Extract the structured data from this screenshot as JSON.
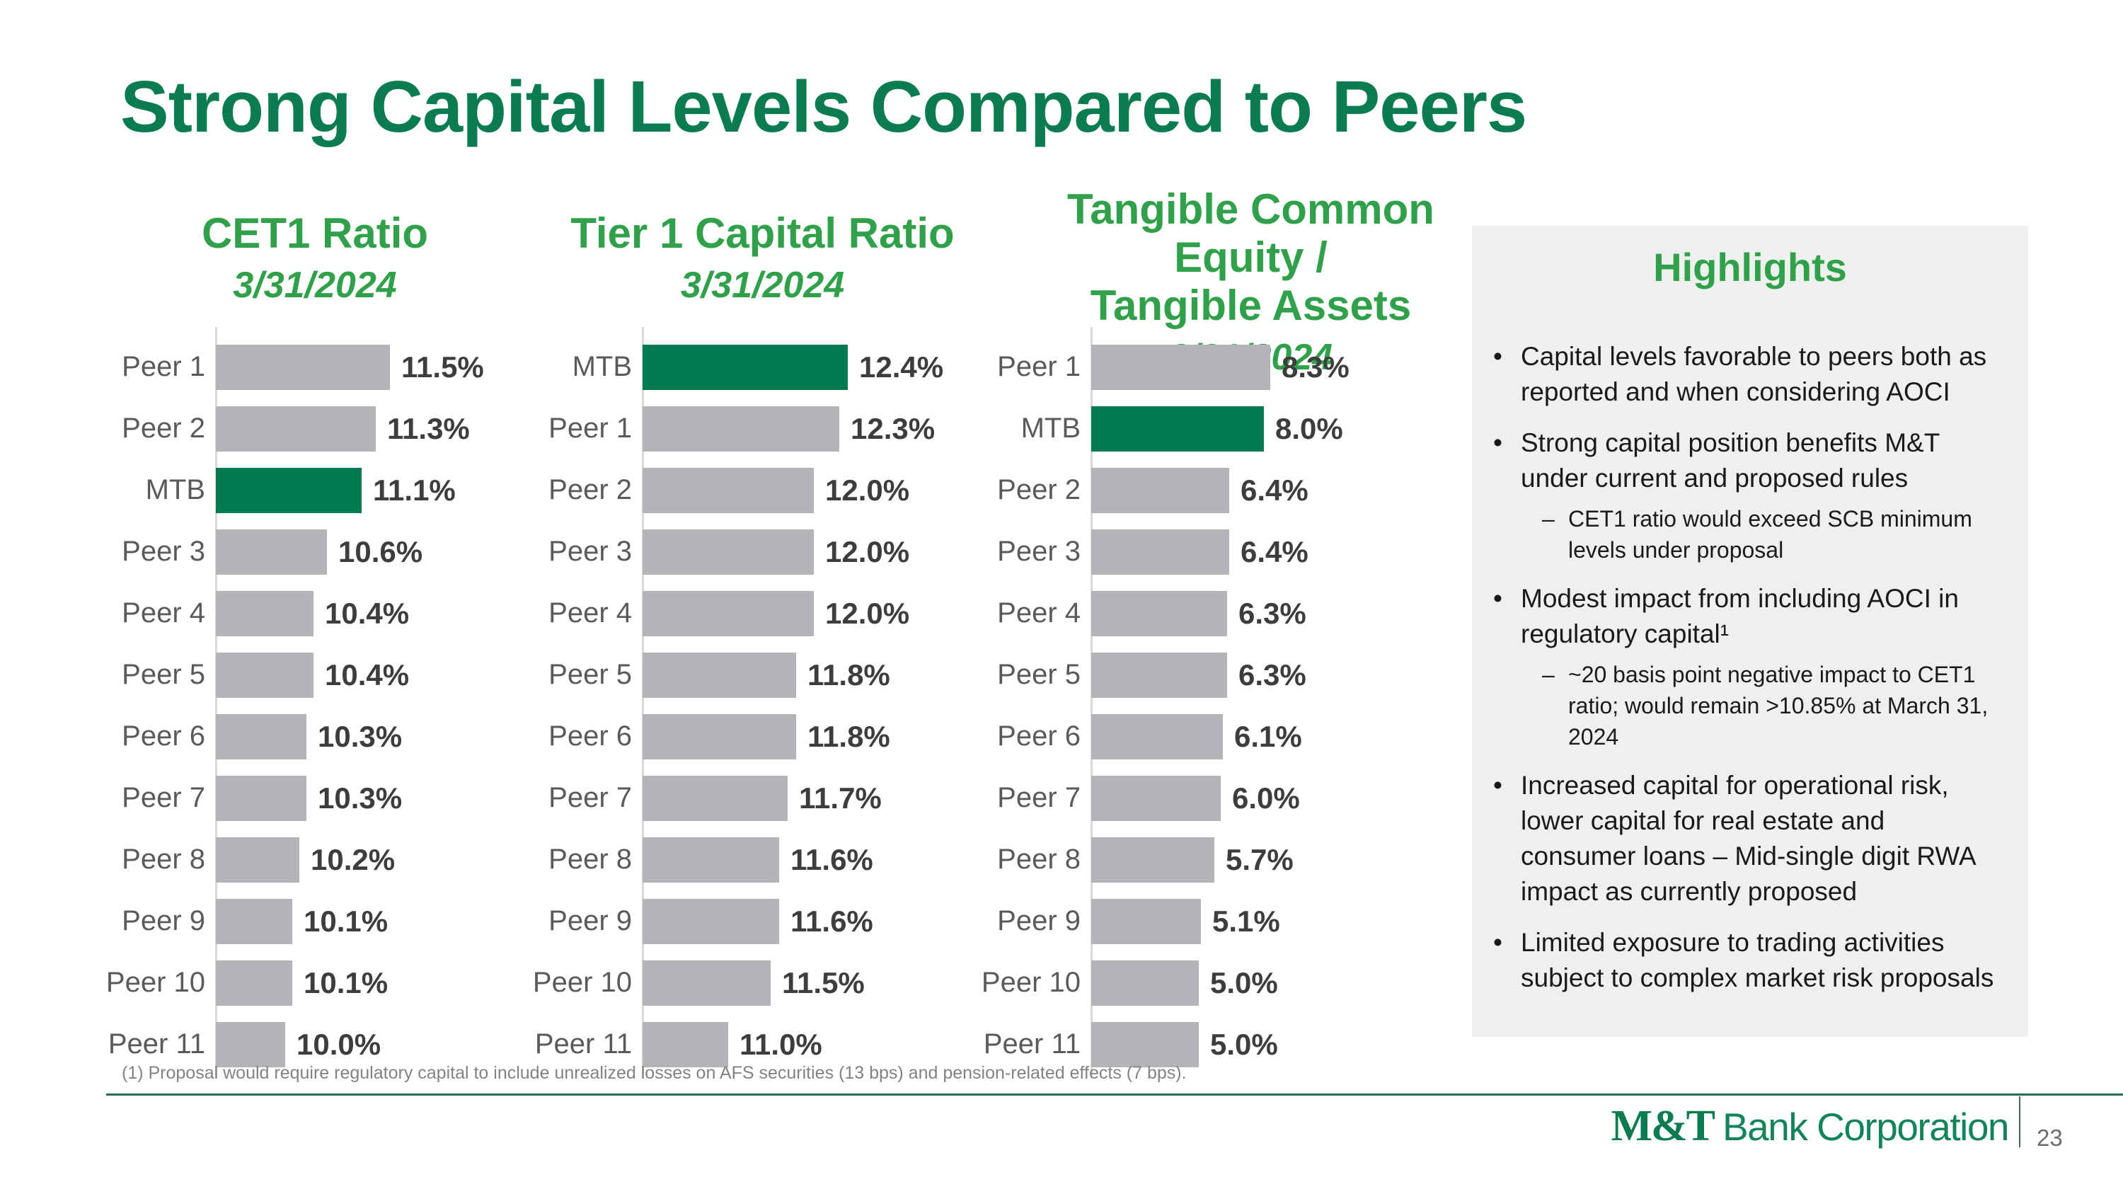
{
  "slide": {
    "title": "Strong Capital Levels Compared to Peers",
    "footnote": "(1) Proposal would require regulatory capital to include unrealized losses on AFS securities (13 bps) and pension-related effects (7 bps).",
    "page_number": "23",
    "logo": {
      "mt": "M&T",
      "name": "Bank Corporation"
    }
  },
  "colors": {
    "title_green": "#0b7c4f",
    "heading_green": "#31a04a",
    "bar_green": "#007a53",
    "bar_gray": "#b3b3b8",
    "label_gray": "#5a5a5a",
    "value_dark": "#3d3d3d",
    "panel_bg": "#eef0ee",
    "rule_green": "#266c57",
    "footnote_gray": "#828282"
  },
  "chart_data": [
    {
      "type": "bar",
      "orientation": "horizontal",
      "title_lines": [
        "CET1 Ratio"
      ],
      "subtitle": "3/31/2024",
      "categories": [
        "Peer 1",
        "Peer 2",
        "MTB",
        "Peer 3",
        "Peer 4",
        "Peer 5",
        "Peer 6",
        "Peer 7",
        "Peer 8",
        "Peer 9",
        "Peer 10",
        "Peer 11"
      ],
      "values": [
        11.5,
        11.3,
        11.1,
        10.6,
        10.4,
        10.4,
        10.3,
        10.3,
        10.2,
        10.1,
        10.1,
        10.0
      ],
      "highlight_category": "MTB",
      "value_suffix": "%",
      "xlim": [
        9.0,
        11.8
      ],
      "grid": false,
      "legend": false
    },
    {
      "type": "bar",
      "orientation": "horizontal",
      "title_lines": [
        "Tier 1 Capital Ratio"
      ],
      "subtitle": "3/31/2024",
      "categories": [
        "MTB",
        "Peer 1",
        "Peer 2",
        "Peer 3",
        "Peer 4",
        "Peer 5",
        "Peer 6",
        "Peer 7",
        "Peer 8",
        "Peer 9",
        "Peer 10",
        "Peer 11"
      ],
      "values": [
        12.4,
        12.3,
        12.0,
        12.0,
        12.0,
        11.8,
        11.8,
        11.7,
        11.6,
        11.6,
        11.5,
        11.0
      ],
      "highlight_category": "MTB",
      "value_suffix": "%",
      "xlim": [
        10.0,
        12.6
      ],
      "grid": false,
      "legend": false
    },
    {
      "type": "bar",
      "orientation": "horizontal",
      "title_lines": [
        "Tangible Common Equity /",
        "Tangible Assets"
      ],
      "subtitle": "3/31/2024",
      "categories": [
        "Peer 1",
        "MTB",
        "Peer 2",
        "Peer 3",
        "Peer 4",
        "Peer 5",
        "Peer 6",
        "Peer 7",
        "Peer 8",
        "Peer 9",
        "Peer 10",
        "Peer 11"
      ],
      "values": [
        8.3,
        8.0,
        6.4,
        6.4,
        6.3,
        6.3,
        6.1,
        6.0,
        5.7,
        5.1,
        5.0,
        5.0
      ],
      "highlight_category": "MTB",
      "value_suffix": "%",
      "xlim": [
        0,
        8.7
      ],
      "grid": false,
      "legend": false
    }
  ],
  "highlights": {
    "title": "Highlights",
    "bullet_char": "•",
    "dash_char": "–",
    "items": [
      {
        "text": "Capital levels favorable to peers both as reported and when considering AOCI",
        "subs": []
      },
      {
        "text": "Strong capital position benefits M&T under current and proposed rules",
        "subs": [
          "CET1 ratio would exceed SCB minimum levels under proposal"
        ]
      },
      {
        "text": "Modest impact from including AOCI in regulatory capital¹",
        "subs": [
          "~20 basis point negative impact to CET1 ratio; would remain >10.85% at March 31, 2024"
        ]
      },
      {
        "text": "Increased capital for operational risk, lower capital for real estate and consumer loans – Mid-single digit RWA impact as currently proposed",
        "subs": []
      },
      {
        "text": "Limited exposure to trading activities subject to complex market risk proposals",
        "subs": []
      }
    ]
  }
}
